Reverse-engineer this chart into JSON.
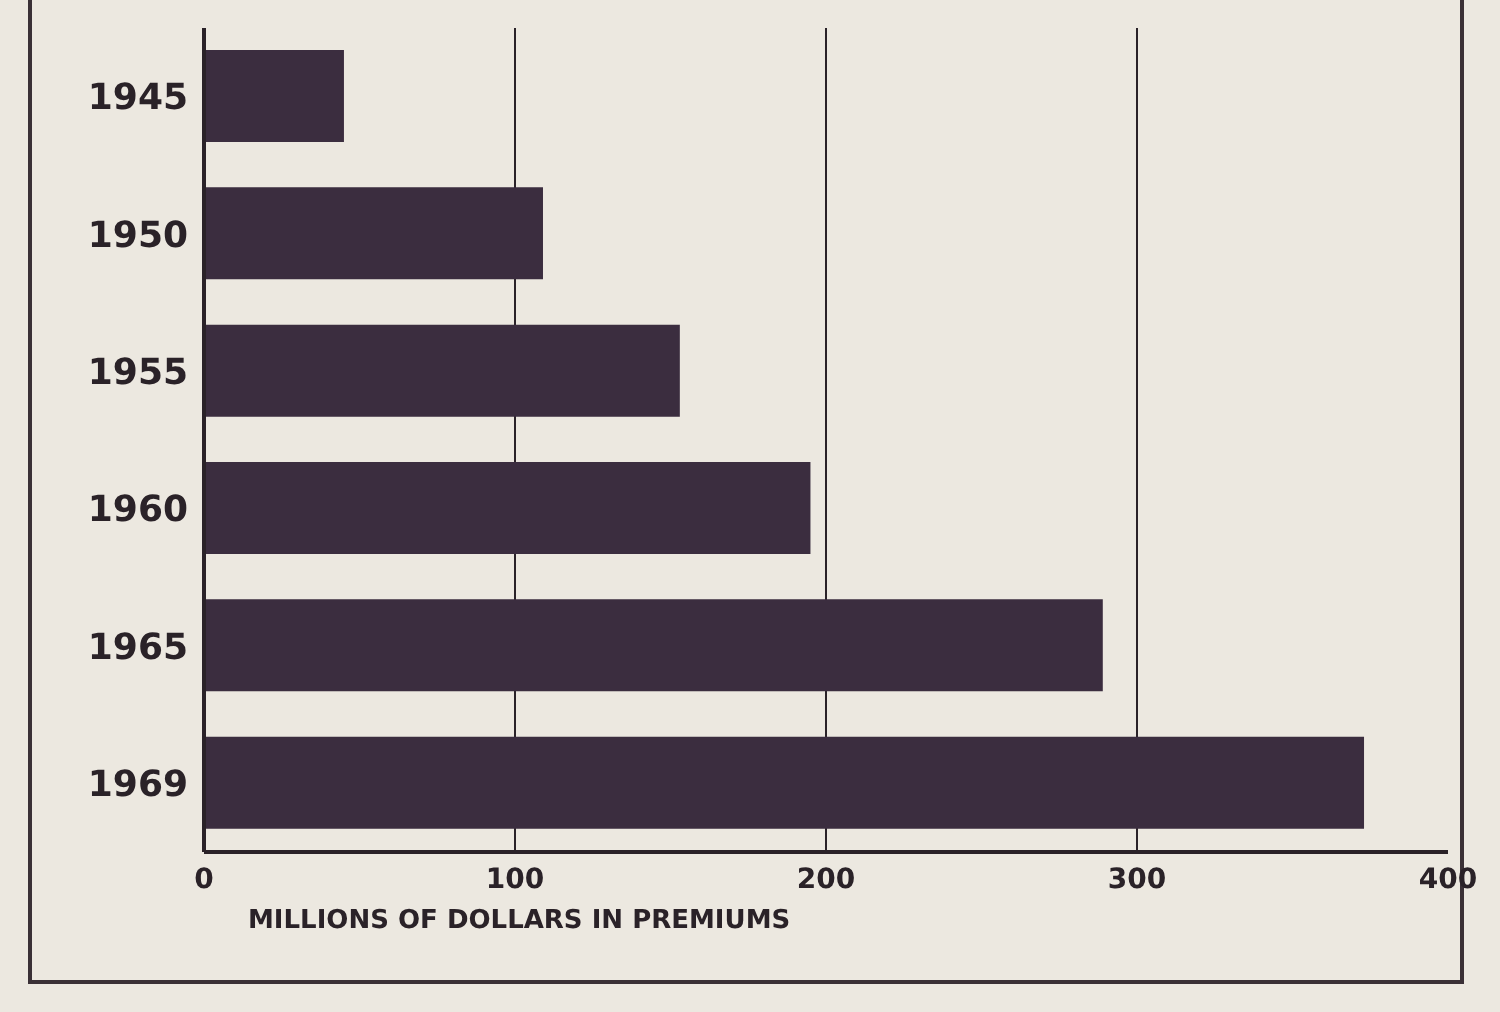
{
  "chart_data": {
    "type": "bar",
    "orientation": "horizontal",
    "categories": [
      "1945",
      "1950",
      "1955",
      "1960",
      "1965",
      "1969"
    ],
    "values": [
      45,
      109,
      153,
      195,
      289,
      373
    ],
    "color": "#3b2d3f",
    "xlim": [
      0,
      400
    ],
    "xticks": [
      0,
      100,
      200,
      300,
      400
    ],
    "xlabel": "MILLIONS OF DOLLARS IN PREMIUMS",
    "grid": "x"
  }
}
